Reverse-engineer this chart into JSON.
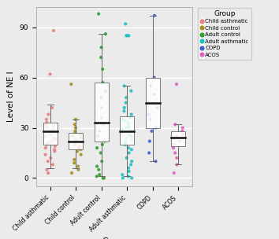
{
  "groups": [
    "Child asthmatic",
    "Child control",
    "Adult control",
    "Adult asthmatic",
    "COPD",
    "ACOS"
  ],
  "colors": {
    "Child asthmatic": "#E88080",
    "Child control": "#A89020",
    "Adult control": "#30A030",
    "Adult asthmatic": "#20C0C0",
    "COPD": "#4060D0",
    "ACOS": "#E060C0"
  },
  "box_data": {
    "Child asthmatic": {
      "median": 28,
      "q1": 20,
      "q3": 33,
      "whislo": 6,
      "whishi": 44
    },
    "Child control": {
      "median": 22,
      "q1": 17,
      "q3": 27,
      "whislo": 6,
      "whishi": 35
    },
    "Adult control": {
      "median": 33,
      "q1": 22,
      "q3": 57,
      "whislo": 1,
      "whishi": 86
    },
    "Adult asthmatic": {
      "median": 28,
      "q1": 20,
      "q3": 37,
      "whislo": 1,
      "whishi": 55
    },
    "COPD": {
      "median": 45,
      "q1": 30,
      "q3": 60,
      "whislo": 10,
      "whishi": 97
    },
    "ACOS": {
      "median": 24,
      "q1": 19,
      "q3": 28,
      "whislo": 8,
      "whishi": 32
    }
  },
  "jitter_data": {
    "Child asthmatic": [
      5,
      8,
      10,
      12,
      14,
      16,
      17,
      18,
      19,
      20,
      21,
      22,
      23,
      24,
      25,
      26,
      27,
      28,
      29,
      30,
      31,
      32,
      33,
      35,
      38,
      42,
      62,
      88,
      3
    ],
    "Child control": [
      5,
      7,
      9,
      11,
      14,
      16,
      17,
      18,
      19,
      20,
      22,
      23,
      24,
      25,
      26,
      27,
      28,
      30,
      32,
      35,
      56,
      3
    ],
    "Adult control": [
      0,
      0,
      1,
      2,
      5,
      7,
      10,
      15,
      18,
      20,
      22,
      25,
      28,
      32,
      36,
      42,
      48,
      52,
      57,
      65,
      72,
      78,
      86,
      98
    ],
    "Adult asthmatic": [
      0,
      0,
      1,
      2,
      4,
      6,
      8,
      10,
      12,
      15,
      17,
      18,
      20,
      21,
      22,
      23,
      24,
      25,
      25,
      26,
      27,
      28,
      28,
      29,
      30,
      30,
      31,
      32,
      33,
      34,
      35,
      36,
      38,
      40,
      42,
      45,
      48,
      52,
      55,
      85,
      85,
      85,
      92
    ],
    "COPD": [
      10,
      15,
      22,
      28,
      30,
      35,
      38,
      42,
      45,
      50,
      55,
      60,
      97
    ],
    "ACOS": [
      3,
      8,
      12,
      15,
      18,
      20,
      22,
      24,
      25,
      26,
      28,
      30,
      32,
      56
    ]
  },
  "ylabel": "Level of NE I",
  "xlabel": "Group",
  "ylim": [
    -5,
    102
  ],
  "yticks": [
    0,
    30,
    60,
    90
  ],
  "bg_color": "#EBEBEB",
  "grid_color": "#FFFFFF",
  "legend_title": "Group",
  "legend_entries": [
    "Child asthmatic",
    "Child control",
    "Adult control",
    "Adult asthmatic",
    "COPD",
    "ACOS"
  ],
  "box_width": 0.55
}
